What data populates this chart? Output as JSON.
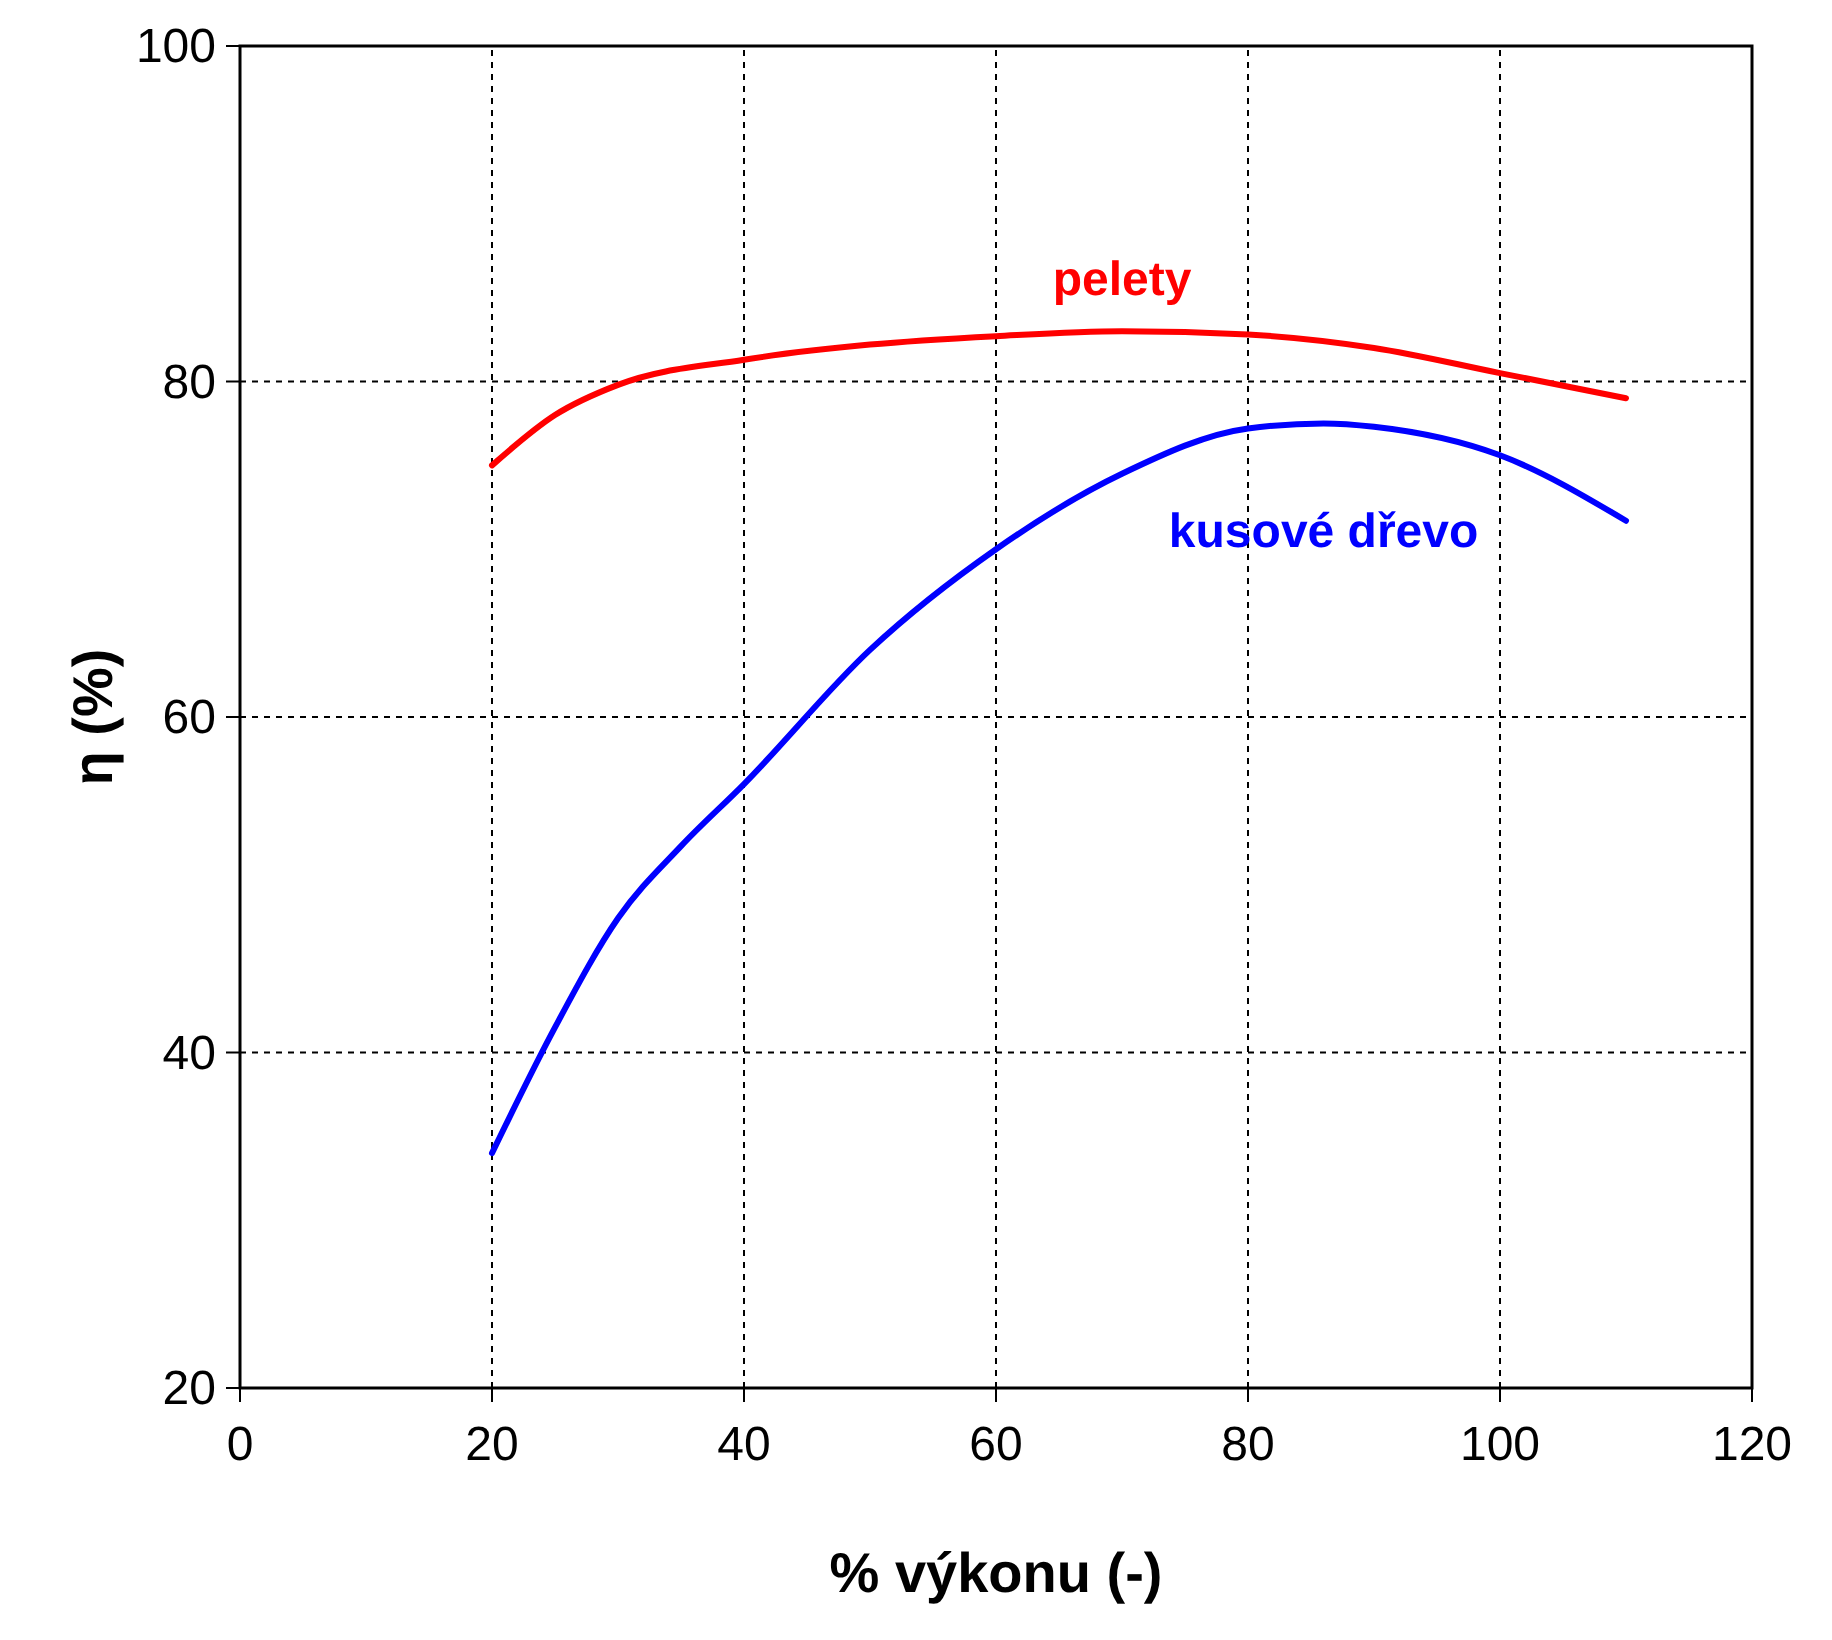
{
  "chart_data": {
    "type": "line",
    "xlabel": "% výkonu (-)",
    "ylabel": "η (%)",
    "xlim": [
      0,
      120
    ],
    "xticks": [
      0,
      20,
      40,
      60,
      80,
      100,
      120
    ],
    "ylim": [
      20,
      100
    ],
    "yticks": [
      20,
      40,
      60,
      80,
      100
    ],
    "grid": true,
    "marker": "none",
    "line_style": "solid",
    "series": [
      {
        "name": "pelety",
        "color": "#ff0000",
        "x": [
          20,
          25,
          30,
          40,
          50,
          60,
          70,
          80,
          90,
          100,
          110
        ],
        "values": [
          75,
          78,
          79.8,
          81.3,
          82.2,
          82.7,
          83,
          82.8,
          82,
          80.5,
          79
        ]
      },
      {
        "name": "kusové dřevo",
        "color": "#0000ff",
        "x": [
          20,
          25,
          30,
          35,
          40,
          50,
          60,
          70,
          80,
          86,
          90,
          100,
          110
        ],
        "values": [
          34,
          41.5,
          48,
          52.3,
          56,
          64,
          70,
          74.5,
          77.2,
          77.5,
          77.3,
          75.6,
          71.7
        ]
      }
    ]
  }
}
